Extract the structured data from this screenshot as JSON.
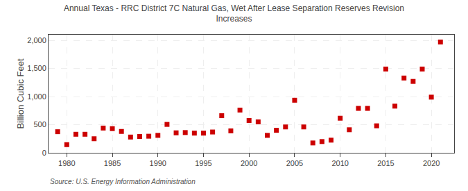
{
  "chart_data": {
    "type": "scatter",
    "title": "Annual Texas - RRC District 7C Natural Gas, Wet After Lease Separation Reserves Revision\nIncreases",
    "ylabel": "Billion Cubic Feet",
    "annotations": [
      "Source: U.S. Energy Information Administration"
    ],
    "color": "#cc0000",
    "marker": "square",
    "grid": true,
    "xlim": [
      1978,
      2022.5
    ],
    "xticks": [
      1980,
      1985,
      1990,
      1995,
      2000,
      2005,
      2010,
      2015,
      2020
    ],
    "ylim": [
      0,
      2100
    ],
    "yticks": [
      0,
      500,
      {
        "value": 1000,
        "label": "1,000"
      },
      {
        "value": 1500,
        "label": "1,500"
      },
      {
        "value": 2000,
        "label": "2,000"
      }
    ],
    "x": [
      1979,
      1980,
      1981,
      1982,
      1983,
      1984,
      1985,
      1986,
      1987,
      1988,
      1989,
      1990,
      1991,
      1992,
      1993,
      1994,
      1995,
      1996,
      1997,
      1998,
      1999,
      2000,
      2001,
      2002,
      2003,
      2004,
      2005,
      2006,
      2007,
      2008,
      2009,
      2010,
      2011,
      2012,
      2013,
      2014,
      2015,
      2016,
      2017,
      2018,
      2019,
      2020,
      2021
    ],
    "values": [
      375,
      145,
      330,
      330,
      250,
      440,
      430,
      380,
      280,
      290,
      295,
      310,
      505,
      355,
      360,
      350,
      350,
      370,
      660,
      390,
      760,
      575,
      550,
      310,
      400,
      460,
      935,
      460,
      175,
      200,
      225,
      615,
      410,
      790,
      790,
      480,
      1490,
      830,
      1330,
      1270,
      1490,
      990,
      1970
    ]
  }
}
